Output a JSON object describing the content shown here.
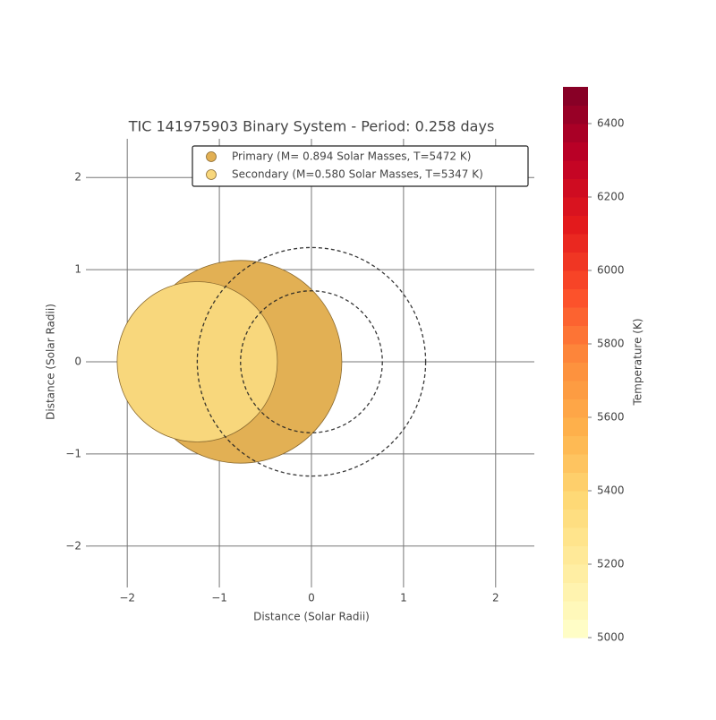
{
  "chart_data": {
    "type": "scatter",
    "title": "TIC 141975903 Binary System - Period: 0.258 days",
    "x_label": "Distance (Solar Radii)",
    "y_label": "Distance (Solar Radii)",
    "xlim": [
      -2.41,
      2.42
    ],
    "ylim": [
      -2.41,
      2.42
    ],
    "xticks": [
      {
        "value": -2,
        "label": "−2"
      },
      {
        "value": -1,
        "label": "−1"
      },
      0,
      1,
      2
    ],
    "yticks": [
      {
        "value": -2,
        "label": "−2"
      },
      {
        "value": -1,
        "label": "−1"
      },
      0,
      1,
      2
    ],
    "grid": true,
    "legend": "upper right",
    "series": [
      {
        "name": "Primary (M= 0.894  Solar Masses, T=5472 K)",
        "color": "#e2b054",
        "x": -0.77,
        "y": 0,
        "radius": 1.1
      },
      {
        "name": "Secondary (M=0.580 Solar Masses, T=5347 K)",
        "color": "#f8d77c",
        "x": -1.24,
        "y": 0,
        "radius": 0.87
      }
    ],
    "colorbar": {
      "label": "Temperature (K)",
      "lim": [
        5000,
        6500
      ],
      "cmap": "YlOrRd",
      "ticks": [
        5000,
        5200,
        5400,
        5600,
        5800,
        6000,
        6200,
        6400
      ]
    }
  }
}
